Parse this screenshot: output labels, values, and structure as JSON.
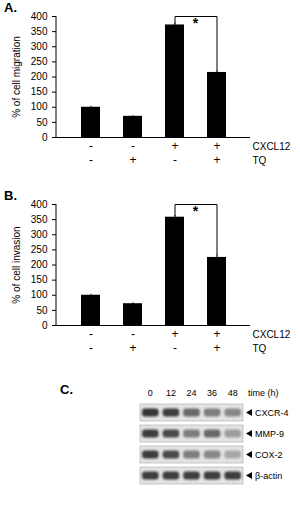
{
  "chart_data": [
    {
      "type": "bar",
      "title": "A.",
      "ylabel": "% of cell migration",
      "categories": [
        null,
        null,
        null,
        null
      ],
      "values": [
        100,
        70,
        372,
        215
      ],
      "errors": [
        3,
        2,
        6,
        5
      ],
      "color": "#000000",
      "ylim": [
        0,
        400
      ],
      "yticks": [
        0,
        50,
        100,
        150,
        200,
        250,
        300,
        350,
        400
      ],
      "conditions": [
        {
          "name": "CXCL12",
          "values": [
            "-",
            "-",
            "+",
            "+"
          ]
        },
        {
          "name": "TQ",
          "values": [
            "-",
            "+",
            "-",
            "+"
          ]
        }
      ],
      "significance": {
        "between": [
          2,
          3
        ],
        "label": "*"
      }
    },
    {
      "type": "bar",
      "title": "B.",
      "ylabel": "% of cell invasion",
      "categories": [
        null,
        null,
        null,
        null
      ],
      "values": [
        100,
        72,
        358,
        225
      ],
      "errors": [
        3,
        3,
        5,
        8
      ],
      "color": "#000000",
      "ylim": [
        0,
        400
      ],
      "yticks": [
        0,
        50,
        100,
        150,
        200,
        250,
        300,
        350,
        400
      ],
      "conditions": [
        {
          "name": "CXCL12",
          "values": [
            "-",
            "-",
            "+",
            "+"
          ]
        },
        {
          "name": "TQ",
          "values": [
            "-",
            "+",
            "-",
            "+"
          ]
        }
      ],
      "significance": {
        "between": [
          2,
          3
        ],
        "label": "*"
      }
    }
  ],
  "blot": {
    "title": "C.",
    "time_label": "time (h)",
    "times": [
      0,
      12,
      24,
      36,
      48
    ],
    "rows": [
      {
        "label": "CXCR-4",
        "intensities": [
          0.85,
          0.8,
          0.6,
          0.5,
          0.45
        ]
      },
      {
        "label": "MMP-9",
        "intensities": [
          0.8,
          0.75,
          0.5,
          0.6,
          0.35
        ]
      },
      {
        "label": "COX-2",
        "intensities": [
          0.8,
          0.75,
          0.5,
          0.45,
          0.3
        ]
      },
      {
        "label": "β-actin",
        "intensities": [
          0.8,
          0.8,
          0.8,
          0.8,
          0.8
        ]
      }
    ]
  }
}
